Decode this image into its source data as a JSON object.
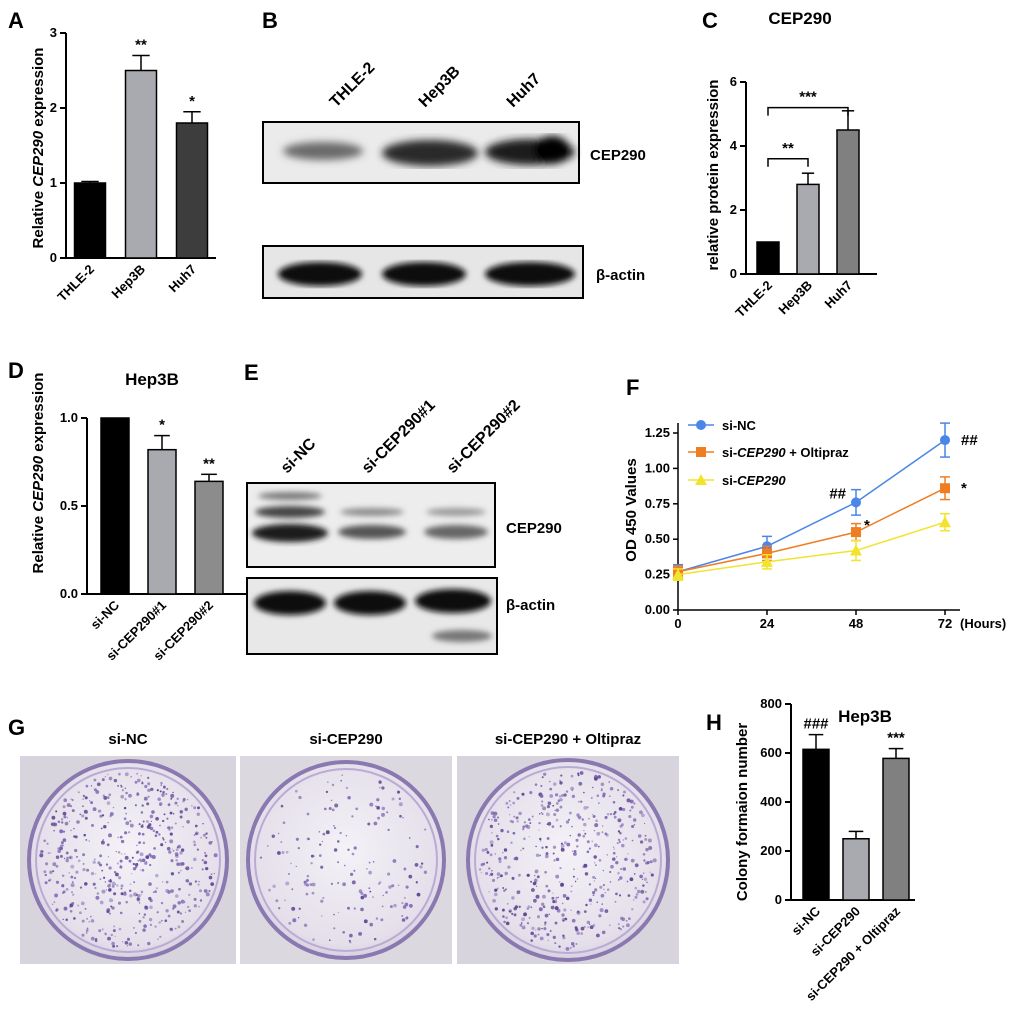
{
  "panels": {
    "A": "A",
    "B": "B",
    "C": "C",
    "D": "D",
    "E": "E",
    "F": "F",
    "G": "G",
    "H": "H"
  },
  "chart_data": [
    {
      "id": "A",
      "type": "bar",
      "title": "",
      "ylabel_pre": "Relative ",
      "ylabel_em": "CEP290",
      "ylabel_post": " expression",
      "categories": [
        "THLE-2",
        "Hep3B",
        "Huh7"
      ],
      "values": [
        1.0,
        2.5,
        1.8
      ],
      "errors": [
        0.02,
        0.2,
        0.15
      ],
      "colors": [
        "#000000",
        "#a9a9b0",
        "#3d3d3d"
      ],
      "significance": [
        "",
        "**",
        "*"
      ],
      "ylim": [
        0,
        3
      ],
      "yticks": [
        "0",
        "1",
        "2",
        "3"
      ]
    },
    {
      "id": "C",
      "type": "bar",
      "title": "CEP290",
      "ylabel": "relative protein expression",
      "categories": [
        "THLE-2",
        "Hep3B",
        "Huh7"
      ],
      "values": [
        1.0,
        2.8,
        4.5
      ],
      "errors": [
        0.0,
        0.35,
        0.6
      ],
      "colors": [
        "#000000",
        "#a9a9b0",
        "#808080"
      ],
      "brackets": [
        {
          "label": "**"
        },
        {
          "label": "***"
        }
      ],
      "ylim": [
        0,
        6
      ],
      "yticks": [
        "0",
        "2",
        "4",
        "6"
      ]
    },
    {
      "id": "D",
      "type": "bar",
      "title": "Hep3B",
      "ylabel_pre": "Relative ",
      "ylabel_em": "CEP290",
      "ylabel_post": " expression",
      "categories": [
        "si-NC",
        "si-CEP290#1",
        "si-CEP290#2"
      ],
      "values": [
        1.0,
        0.82,
        0.64
      ],
      "errors": [
        0.0,
        0.08,
        0.04
      ],
      "colors": [
        "#000000",
        "#a9a9b0",
        "#8c8c8c"
      ],
      "significance": [
        "",
        "*",
        "**"
      ],
      "ylim": [
        0,
        1.0
      ],
      "yticks": [
        "0.0",
        "0.5",
        "1.0"
      ]
    },
    {
      "id": "F",
      "type": "line",
      "ylabel": "OD 450 Values",
      "x_unit": "(Hours)",
      "x": [
        0,
        24,
        48,
        72
      ],
      "xticks": [
        "0",
        "24",
        "48",
        "72"
      ],
      "ylim": [
        0,
        1.25
      ],
      "yticks": [
        "0.00",
        "0.25",
        "0.50",
        "0.75",
        "1.00",
        "1.25"
      ],
      "series": [
        {
          "name": "si-NC",
          "values": [
            0.27,
            0.45,
            0.76,
            1.2
          ],
          "errors": [
            0.05,
            0.07,
            0.09,
            0.12
          ],
          "color": "#4a86e8",
          "marker": "circle",
          "end_mark": "##"
        },
        {
          "name_pre": "si-",
          "name_em": "CEP290",
          "name_post": " + Oltipraz",
          "values": [
            0.27,
            0.4,
            0.55,
            0.86
          ],
          "errors": [
            0.04,
            0.05,
            0.06,
            0.08
          ],
          "color": "#ef7d22",
          "marker": "square",
          "end_mark": "*"
        },
        {
          "name_pre": "si-",
          "name_em": "CEP290",
          "name_post": "",
          "values": [
            0.25,
            0.34,
            0.42,
            0.62
          ],
          "errors": [
            0.04,
            0.05,
            0.07,
            0.06
          ],
          "color": "#f2e32c",
          "marker": "triangle"
        }
      ],
      "annotations": [
        {
          "label": "##",
          "series": 0,
          "x": 48
        },
        {
          "label": "*",
          "series": 1,
          "x": 48
        }
      ]
    },
    {
      "id": "H",
      "type": "bar",
      "title": "Hep3B",
      "ylabel": "Colony formaion number",
      "categories": [
        "si-NC",
        "si-CEP290",
        "si-CEP290 + Oltipraz"
      ],
      "values": [
        615,
        250,
        578
      ],
      "errors": [
        60,
        30,
        40
      ],
      "colors": [
        "#000000",
        "#a9a9b0",
        "#808080"
      ],
      "significance": [
        "###",
        "",
        "***"
      ],
      "ylim": [
        0,
        800
      ],
      "yticks": [
        "0",
        "200",
        "400",
        "600",
        "800"
      ]
    }
  ],
  "blots": {
    "B": {
      "lanes": [
        "THLE-2",
        "Hep3B",
        "Huh7"
      ],
      "bands": [
        "CEP290",
        "β-actin"
      ]
    },
    "E": {
      "lanes": [
        "si-NC",
        "si-CEP290#1",
        "si-CEP290#2"
      ],
      "bands": [
        "CEP290",
        "β-actin"
      ]
    }
  },
  "photos": {
    "labels": [
      "si-NC",
      "si-CEP290",
      "si-CEP290 + Oltipraz"
    ]
  }
}
